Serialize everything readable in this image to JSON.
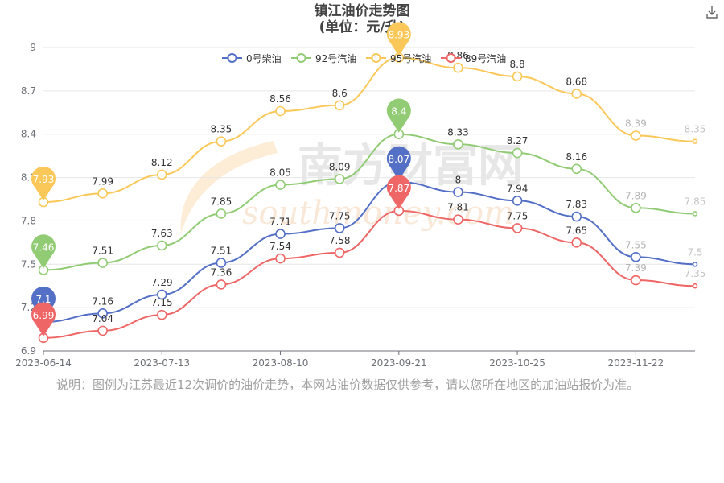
{
  "header": {
    "title": "镇江油价走势图",
    "subtitle": "(单位：元/升)"
  },
  "toolbar": {
    "download_icon": "download-icon"
  },
  "note": "说明：图例为江苏最近12次调价的油价走势，本网站油价数据仅供参考，请以您所在地区的加油站报价为准。",
  "watermark": {
    "cn": "南方财富网",
    "en": "southmoney.com"
  },
  "colors": {
    "diesel0": "#5470c6",
    "gas92": "#91cc75",
    "gas95": "#fac858",
    "gas89": "#ee6666"
  },
  "chart_data": {
    "type": "line",
    "x_tick_labels": [
      "2023-06-14",
      "2023-07-13",
      "2023-08-10",
      "2023-09-21",
      "2023-10-25",
      "2023-11-22"
    ],
    "x_tick_index": [
      0,
      2,
      4,
      6,
      8,
      10
    ],
    "categories": [
      "2023-06-14",
      "",
      "2023-07-13",
      "",
      "2023-08-10",
      "",
      "2023-09-21",
      "",
      "2023-10-25",
      "",
      "2023-11-22",
      ""
    ],
    "ylim": [
      6.9,
      9
    ],
    "y_ticks": [
      "6.9",
      "7.2",
      "7.5",
      "7.8",
      "8.1",
      "8.4",
      "8.7",
      "9"
    ],
    "series": [
      {
        "name": "0号柴油",
        "color_key": "diesel0",
        "values": [
          7.1,
          7.16,
          7.29,
          7.51,
          7.71,
          7.75,
          8.07,
          8.0,
          7.94,
          7.83,
          7.55,
          7.5
        ],
        "max_index": 6,
        "min_index": 0
      },
      {
        "name": "92号汽油",
        "color_key": "gas92",
        "values": [
          7.46,
          7.51,
          7.63,
          7.85,
          8.05,
          8.09,
          8.4,
          8.33,
          8.27,
          8.16,
          7.89,
          7.85
        ],
        "max_index": 6,
        "min_index": 0
      },
      {
        "name": "95号汽油",
        "color_key": "gas95",
        "values": [
          7.93,
          7.99,
          8.12,
          8.35,
          8.56,
          8.6,
          8.93,
          8.86,
          8.8,
          8.68,
          8.39,
          8.35
        ],
        "max_index": 6,
        "min_index": 0
      },
      {
        "name": "89号汽油",
        "color_key": "gas89",
        "values": [
          6.99,
          7.04,
          7.15,
          7.36,
          7.54,
          7.58,
          7.87,
          7.81,
          7.75,
          7.65,
          7.39,
          7.35
        ],
        "max_index": 6,
        "min_index": 0
      }
    ]
  }
}
